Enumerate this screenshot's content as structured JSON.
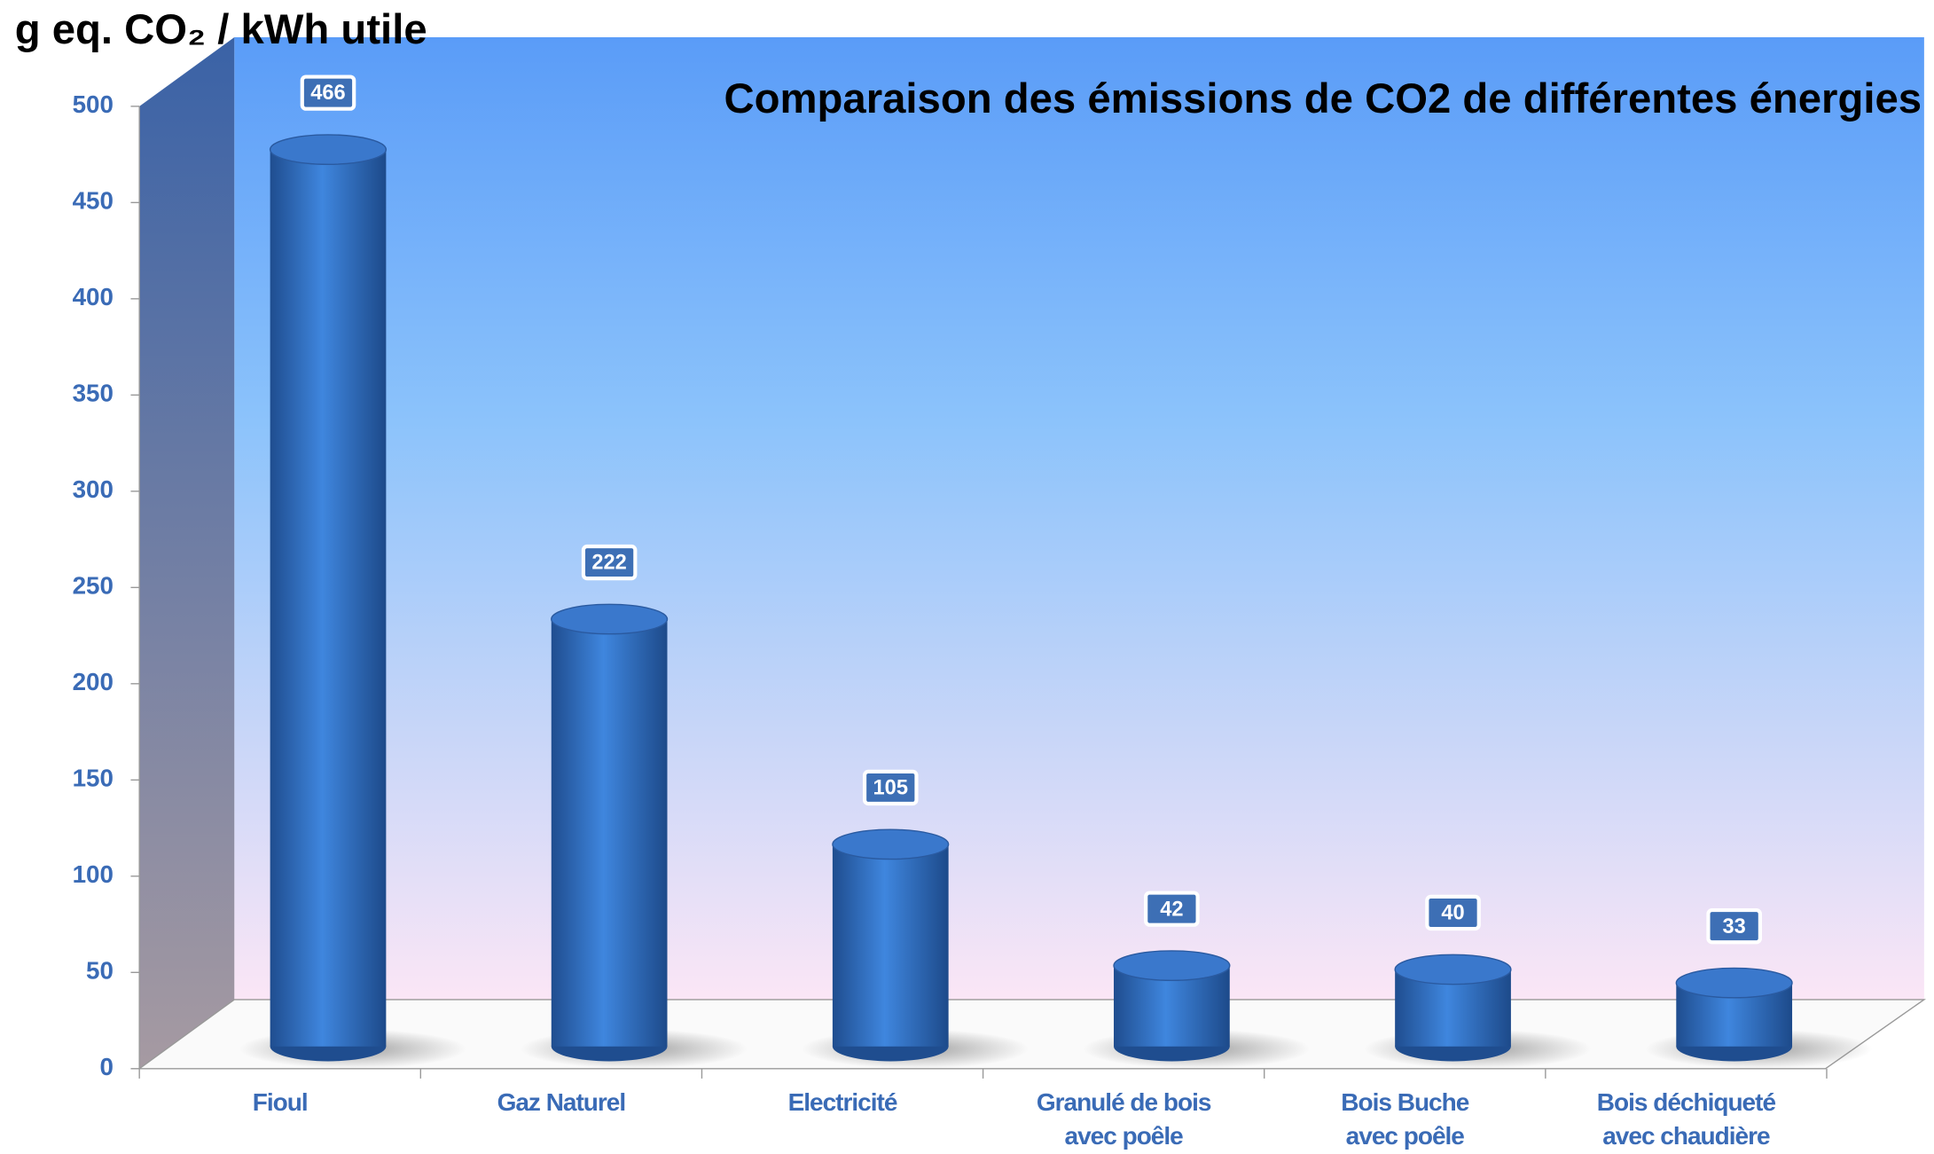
{
  "chart_data": {
    "type": "bar",
    "title": "Comparaison des émissions de CO2 de différentes énergies",
    "y_label": "g eq. CO₂ / kWh utile",
    "categories": [
      "Fioul",
      "Gaz Naturel",
      "Electricité",
      "Granulé de bois\navec poêle",
      "Bois Buche\navec poêle",
      "Bois déchiqueté\navec chaudière"
    ],
    "values": [
      466,
      222,
      105,
      42,
      40,
      33
    ],
    "color": "#3a78cc",
    "ylim": [
      0,
      500
    ],
    "yticks": [
      0,
      50,
      100,
      150,
      200,
      250,
      300,
      350,
      400,
      450,
      500
    ]
  }
}
